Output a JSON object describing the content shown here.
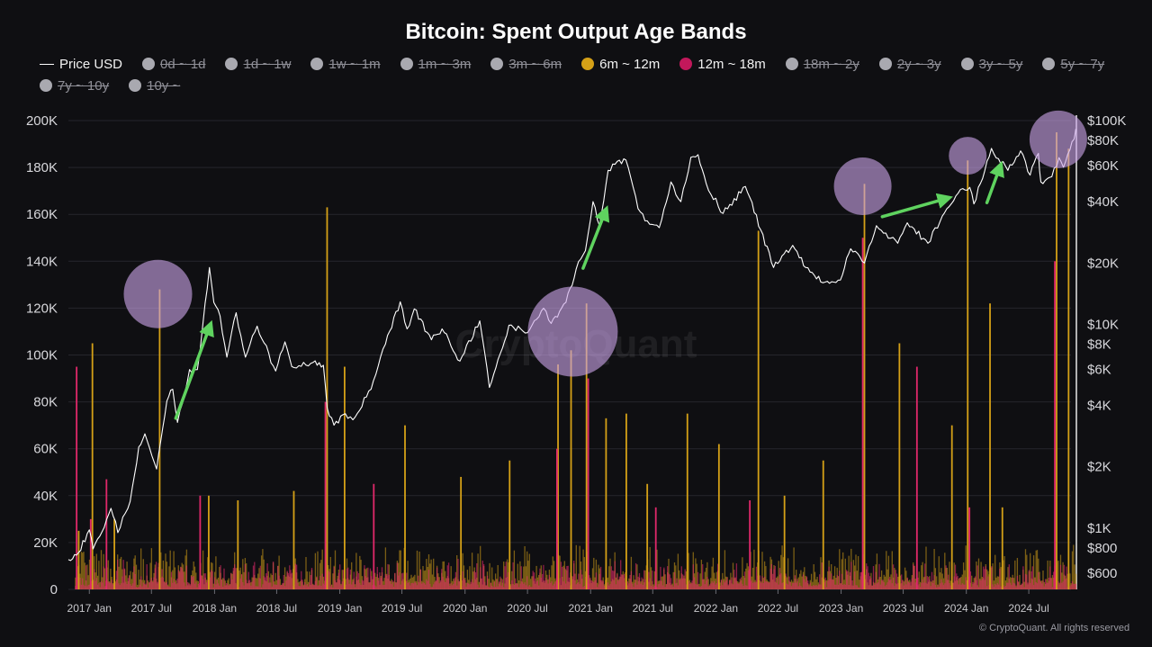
{
  "title": "Bitcoin: Spent Output Age Bands",
  "legend": [
    {
      "label": "Price USD",
      "color": "#ffffff",
      "active": true,
      "marker": "line"
    },
    {
      "label": "0d ~ 1d",
      "color": "#a9a9b0",
      "active": false
    },
    {
      "label": "1d ~ 1w",
      "color": "#a9a9b0",
      "active": false
    },
    {
      "label": "1w ~ 1m",
      "color": "#a9a9b0",
      "active": false
    },
    {
      "label": "1m ~ 3m",
      "color": "#a9a9b0",
      "active": false
    },
    {
      "label": "3m ~ 6m",
      "color": "#a9a9b0",
      "active": false
    },
    {
      "label": "6m ~ 12m",
      "color": "#d4a017",
      "active": true
    },
    {
      "label": "12m ~ 18m",
      "color": "#c2185b",
      "active": true
    },
    {
      "label": "18m ~ 2y",
      "color": "#a9a9b0",
      "active": false
    },
    {
      "label": "2y ~ 3y",
      "color": "#a9a9b0",
      "active": false
    },
    {
      "label": "3y ~ 5y",
      "color": "#a9a9b0",
      "active": false
    },
    {
      "label": "5y ~ 7y",
      "color": "#a9a9b0",
      "active": false
    },
    {
      "label": "7y ~ 10y",
      "color": "#a9a9b0",
      "active": false
    },
    {
      "label": "10y ~",
      "color": "#a9a9b0",
      "active": false
    }
  ],
  "watermark": "CryptoQuant",
  "copyright": "© CryptoQuant. All rights reserved",
  "colors": {
    "price": "#ffffff",
    "band_6m_12m": "#d4a017",
    "band_12m_18m": "#e0286a",
    "circle": "#c9a3e6",
    "arrow": "#5fd35f",
    "grid": "#26262c"
  },
  "chart_data": {
    "type": "bar",
    "left_axis": {
      "min": 0,
      "max": 200000,
      "ticks": [
        0,
        20000,
        40000,
        60000,
        80000,
        100000,
        120000,
        140000,
        160000,
        180000,
        200000
      ],
      "tick_labels": [
        "0",
        "20K",
        "40K",
        "60K",
        "80K",
        "100K",
        "120K",
        "140K",
        "160K",
        "180K",
        "200K"
      ]
    },
    "right_axis": {
      "scale": "log",
      "min": 500,
      "max": 100000,
      "ticks": [
        600,
        800,
        1000,
        2000,
        4000,
        6000,
        8000,
        10000,
        20000,
        40000,
        60000,
        80000,
        100000
      ],
      "tick_labels": [
        "$600",
        "$800",
        "$1K",
        "$2K",
        "$4K",
        "$6K",
        "$8K",
        "$10K",
        "$20K",
        "$40K",
        "$60K",
        "$80K",
        "$100K"
      ]
    },
    "x_axis": {
      "start": "2016-11",
      "end": "2024-11",
      "ticks": [
        "2017-01",
        "2017-07",
        "2018-01",
        "2018-07",
        "2019-01",
        "2019-07",
        "2020-01",
        "2020-07",
        "2021-01",
        "2021-07",
        "2022-01",
        "2022-07",
        "2023-01",
        "2023-07",
        "2024-01",
        "2024-07"
      ],
      "tick_labels": [
        "2017 Jan",
        "2017 Jul",
        "2018 Jan",
        "2018 Jul",
        "2019 Jan",
        "2019 Jul",
        "2020 Jan",
        "2020 Jul",
        "2021 Jan",
        "2021 Jul",
        "2022 Jan",
        "2022 Jul",
        "2023 Jan",
        "2023 Jul",
        "2024 Jan",
        "2024 Jul"
      ]
    },
    "series": [
      {
        "name": "6m ~ 12m",
        "axis": "left",
        "spikes": [
          [
            "2016-12-01",
            25000
          ],
          [
            "2017-01-10",
            105000
          ],
          [
            "2017-03-15",
            30000
          ],
          [
            "2017-07-25",
            128000
          ],
          [
            "2017-12-15",
            40000
          ],
          [
            "2018-03-10",
            38000
          ],
          [
            "2018-08-20",
            42000
          ],
          [
            "2018-11-25",
            163000
          ],
          [
            "2019-01-15",
            95000
          ],
          [
            "2019-07-10",
            70000
          ],
          [
            "2019-12-20",
            48000
          ],
          [
            "2020-05-10",
            55000
          ],
          [
            "2020-09-28",
            96000
          ],
          [
            "2020-11-05",
            102000
          ],
          [
            "2020-12-20",
            122000
          ],
          [
            "2021-02-15",
            73000
          ],
          [
            "2021-04-15",
            75000
          ],
          [
            "2021-06-15",
            45000
          ],
          [
            "2021-10-10",
            75000
          ],
          [
            "2022-01-10",
            62000
          ],
          [
            "2022-05-05",
            153000
          ],
          [
            "2022-07-20",
            40000
          ],
          [
            "2022-11-10",
            55000
          ],
          [
            "2023-03-10",
            173000
          ],
          [
            "2023-06-20",
            105000
          ],
          [
            "2023-11-20",
            70000
          ],
          [
            "2024-01-05",
            183000
          ],
          [
            "2024-03-10",
            122000
          ],
          [
            "2024-04-15",
            35000
          ],
          [
            "2024-09-20",
            195000
          ],
          [
            "2024-10-25",
            188000
          ]
        ]
      },
      {
        "name": "12m ~ 18m",
        "axis": "left",
        "spikes": [
          [
            "2016-11-25",
            95000
          ],
          [
            "2017-01-05",
            30000
          ],
          [
            "2017-02-20",
            47000
          ],
          [
            "2017-11-20",
            40000
          ],
          [
            "2018-11-20",
            80000
          ],
          [
            "2019-04-10",
            45000
          ],
          [
            "2020-09-25",
            60000
          ],
          [
            "2020-12-25",
            90000
          ],
          [
            "2021-07-10",
            35000
          ],
          [
            "2022-04-10",
            38000
          ],
          [
            "2023-03-05",
            150000
          ],
          [
            "2023-08-10",
            95000
          ],
          [
            "2024-01-10",
            35000
          ],
          [
            "2024-09-15",
            140000
          ]
        ]
      },
      {
        "name": "Price USD",
        "axis": "right",
        "points": [
          [
            "2016-11-01",
            700
          ],
          [
            "2016-12-01",
            760
          ],
          [
            "2017-01-01",
            980
          ],
          [
            "2017-01-12",
            790
          ],
          [
            "2017-02-20",
            1100
          ],
          [
            "2017-03-05",
            1250
          ],
          [
            "2017-03-25",
            950
          ],
          [
            "2017-04-30",
            1350
          ],
          [
            "2017-05-25",
            2500
          ],
          [
            "2017-06-12",
            2900
          ],
          [
            "2017-07-16",
            1950
          ],
          [
            "2017-08-15",
            4200
          ],
          [
            "2017-09-01",
            4800
          ],
          [
            "2017-09-15",
            3300
          ],
          [
            "2017-10-20",
            6000
          ],
          [
            "2017-11-12",
            6000
          ],
          [
            "2017-11-28",
            10000
          ],
          [
            "2017-12-17",
            19000
          ],
          [
            "2017-12-30",
            12800
          ],
          [
            "2018-01-17",
            11000
          ],
          [
            "2018-02-06",
            6900
          ],
          [
            "2018-03-05",
            11400
          ],
          [
            "2018-04-01",
            6900
          ],
          [
            "2018-05-05",
            9800
          ],
          [
            "2018-06-28",
            5900
          ],
          [
            "2018-07-25",
            8200
          ],
          [
            "2018-08-14",
            6200
          ],
          [
            "2018-10-15",
            6500
          ],
          [
            "2018-11-14",
            6300
          ],
          [
            "2018-11-25",
            3900
          ],
          [
            "2018-12-15",
            3200
          ],
          [
            "2019-01-10",
            3600
          ],
          [
            "2019-02-08",
            3400
          ],
          [
            "2019-04-02",
            4800
          ],
          [
            "2019-05-14",
            8000
          ],
          [
            "2019-06-26",
            12900
          ],
          [
            "2019-07-16",
            9500
          ],
          [
            "2019-08-06",
            11900
          ],
          [
            "2019-09-25",
            8400
          ],
          [
            "2019-10-26",
            9500
          ],
          [
            "2019-12-17",
            6600
          ],
          [
            "2020-02-13",
            10400
          ],
          [
            "2020-03-12",
            4900
          ],
          [
            "2020-05-08",
            9900
          ],
          [
            "2020-07-01",
            9100
          ],
          [
            "2020-08-17",
            12000
          ],
          [
            "2020-09-08",
            10100
          ],
          [
            "2020-10-21",
            12800
          ],
          [
            "2020-11-20",
            18700
          ],
          [
            "2020-12-17",
            23000
          ],
          [
            "2021-01-08",
            40000
          ],
          [
            "2021-01-27",
            30500
          ],
          [
            "2021-02-21",
            57000
          ],
          [
            "2021-03-13",
            61000
          ],
          [
            "2021-04-14",
            64000
          ],
          [
            "2021-05-19",
            37000
          ],
          [
            "2021-06-22",
            31000
          ],
          [
            "2021-07-20",
            29800
          ],
          [
            "2021-08-23",
            50000
          ],
          [
            "2021-09-21",
            40000
          ],
          [
            "2021-10-20",
            66000
          ],
          [
            "2021-11-10",
            68000
          ],
          [
            "2021-12-04",
            49000
          ],
          [
            "2022-01-22",
            35000
          ],
          [
            "2022-03-28",
            47500
          ],
          [
            "2022-05-12",
            29000
          ],
          [
            "2022-06-18",
            19000
          ],
          [
            "2022-08-13",
            24400
          ],
          [
            "2022-09-20",
            19000
          ],
          [
            "2022-11-09",
            16000
          ],
          [
            "2022-12-30",
            16500
          ],
          [
            "2023-01-29",
            23500
          ],
          [
            "2023-03-10",
            20000
          ],
          [
            "2023-04-14",
            30500
          ],
          [
            "2023-06-15",
            25000
          ],
          [
            "2023-07-13",
            31500
          ],
          [
            "2023-09-11",
            25000
          ],
          [
            "2023-10-23",
            34000
          ],
          [
            "2023-12-08",
            44000
          ],
          [
            "2024-01-11",
            47000
          ],
          [
            "2024-01-23",
            39000
          ],
          [
            "2024-03-14",
            73000
          ],
          [
            "2024-05-01",
            57000
          ],
          [
            "2024-06-07",
            71000
          ],
          [
            "2024-07-05",
            54000
          ],
          [
            "2024-07-29",
            69000
          ],
          [
            "2024-08-05",
            50000
          ],
          [
            "2024-09-06",
            53000
          ],
          [
            "2024-09-27",
            65800
          ],
          [
            "2024-10-10",
            59000
          ],
          [
            "2024-10-29",
            72000
          ],
          [
            "2024-11-10",
            81000
          ],
          [
            "2024-11-15",
            91000
          ]
        ]
      }
    ],
    "highlights": [
      {
        "date": "2017-07-20",
        "value": 126000,
        "axis": "left",
        "r": 38
      },
      {
        "date": "2020-11-10",
        "value": 110000,
        "axis": "left",
        "r": 50
      },
      {
        "date": "2023-03-05",
        "value": 172000,
        "axis": "left",
        "r": 32
      },
      {
        "date": "2024-01-05",
        "value": 185000,
        "axis": "left",
        "r": 21
      },
      {
        "date": "2024-09-25",
        "value": 192000,
        "axis": "left",
        "r": 32
      }
    ],
    "arrows": [
      {
        "from": [
          "2017-09-10",
          73000
        ],
        "to": [
          "2017-12-20",
          113000
        ],
        "axis": "left"
      },
      {
        "from": [
          "2020-12-10",
          137000
        ],
        "to": [
          "2021-02-15",
          162000
        ],
        "axis": "left"
      },
      {
        "from": [
          "2023-05-01",
          159000
        ],
        "to": [
          "2023-11-10",
          167000
        ],
        "axis": "left"
      },
      {
        "from": [
          "2024-03-01",
          165000
        ],
        "to": [
          "2024-04-10",
          181000
        ],
        "axis": "left"
      }
    ]
  }
}
